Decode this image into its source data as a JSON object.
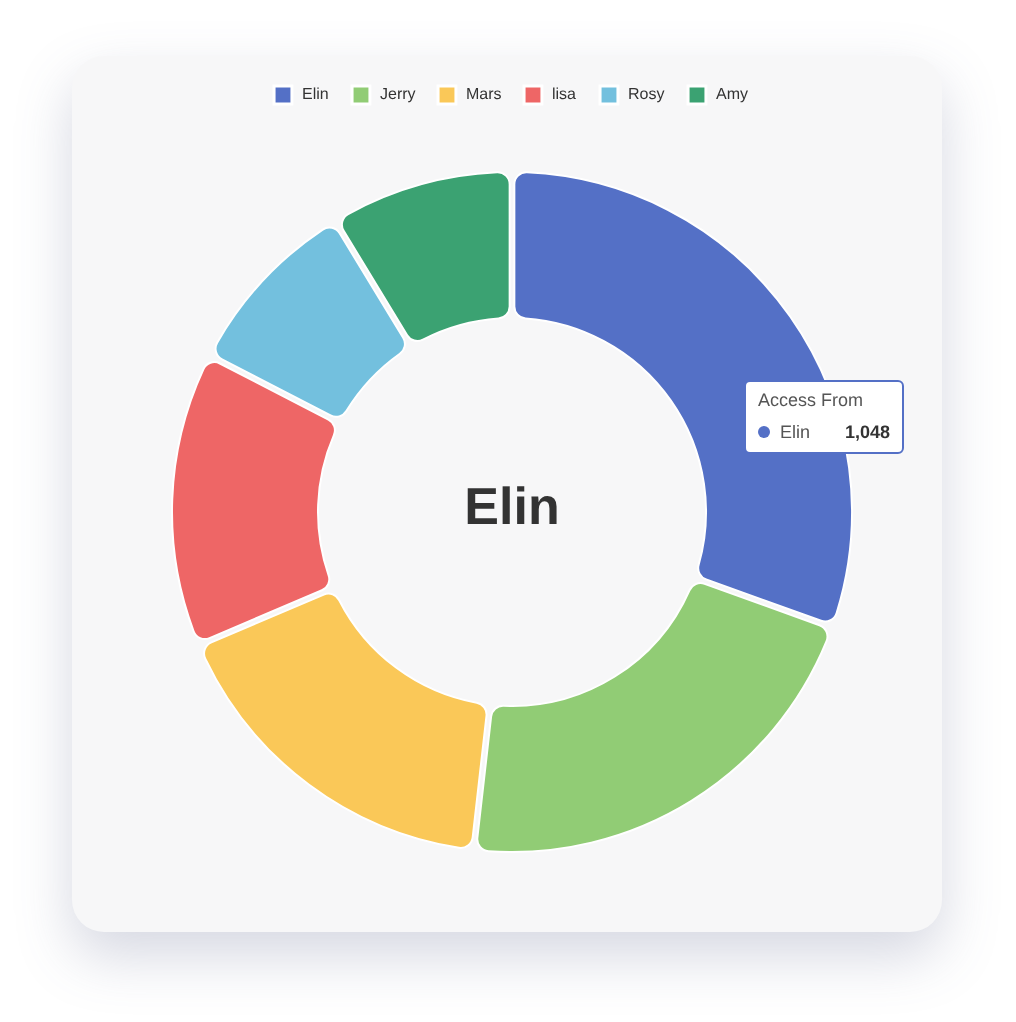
{
  "chart_data": {
    "type": "donut",
    "categories": [
      "Elin",
      "Jerry",
      "Mars",
      "lisa",
      "Rosy",
      "Amy"
    ],
    "values": [
      30.5,
      21.3,
      16.8,
      14.0,
      8.7,
      8.7
    ],
    "colors": [
      "#5470c6",
      "#91cc75",
      "#fac858",
      "#ee6666",
      "#73c0de",
      "#3ba272"
    ],
    "legend": "top",
    "annotations": [
      "Elin",
      "Access From",
      "Elin",
      "1,048"
    ]
  }
}
